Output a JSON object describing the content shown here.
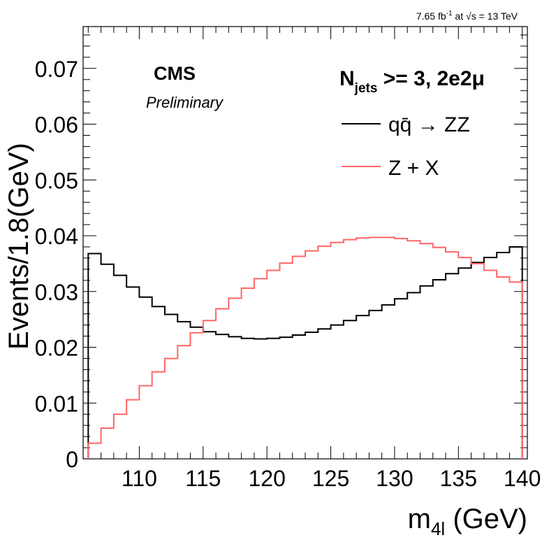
{
  "header": {
    "lumi_prefix": "7.65 fb",
    "lumi_exp": "-1",
    "lumi_mid": " at ",
    "lumi_sqrt": "√s",
    "lumi_suffix": " = 13 TeV"
  },
  "cms": {
    "label": "CMS",
    "sublabel": "Preliminary"
  },
  "category": {
    "n": "N",
    "sub": "jets",
    "rest": " >= 3, 2e2μ"
  },
  "chart_data": {
    "type": "line",
    "drawstyle": "step",
    "xlabel_main": "m",
    "xlabel_sub": "4l",
    "xlabel_unit": " (GeV)",
    "ylabel": "Events/1.8(GeV)",
    "xlim": [
      105.6,
      140.4
    ],
    "ylim": [
      0,
      0.0775
    ],
    "xticks": [
      110,
      115,
      120,
      125,
      130,
      135,
      140
    ],
    "yticks": [
      0,
      0.01,
      0.02,
      0.03,
      0.04,
      0.05,
      0.06,
      0.07
    ],
    "ytick_labels": [
      "0",
      "0.01",
      "0.02",
      "0.03",
      "0.04",
      "0.05",
      "0.06",
      "0.07"
    ],
    "bin_edges": [
      106,
      107,
      108,
      109,
      110,
      111,
      112,
      113,
      114,
      115,
      116,
      117,
      118,
      119,
      120,
      121,
      122,
      123,
      124,
      125,
      126,
      127,
      128,
      129,
      130,
      131,
      132,
      133,
      134,
      135,
      136,
      137,
      138,
      139,
      140
    ],
    "legend_position": "top-right",
    "grid": false,
    "series": [
      {
        "name": "qq̄ → ZZ",
        "color": "#000000",
        "values": [
          0.0368,
          0.0349,
          0.0329,
          0.0308,
          0.029,
          0.0273,
          0.0259,
          0.0246,
          0.0236,
          0.0228,
          0.0223,
          0.0219,
          0.0216,
          0.0215,
          0.0216,
          0.0218,
          0.0222,
          0.0227,
          0.0233,
          0.024,
          0.0248,
          0.0257,
          0.0266,
          0.0276,
          0.0287,
          0.0298,
          0.031,
          0.0321,
          0.0332,
          0.0342,
          0.0352,
          0.0361,
          0.037,
          0.038
        ]
      },
      {
        "name": "Z + X",
        "color": "#ff6666",
        "values": [
          0.0028,
          0.0055,
          0.008,
          0.0106,
          0.0131,
          0.0156,
          0.018,
          0.0203,
          0.0226,
          0.0248,
          0.0269,
          0.0288,
          0.0306,
          0.0323,
          0.0338,
          0.0351,
          0.0363,
          0.0373,
          0.0381,
          0.0388,
          0.0393,
          0.0396,
          0.0397,
          0.0397,
          0.0395,
          0.0391,
          0.0386,
          0.0379,
          0.0371,
          0.0361,
          0.035,
          0.0338,
          0.0326,
          0.0317
        ]
      }
    ]
  }
}
